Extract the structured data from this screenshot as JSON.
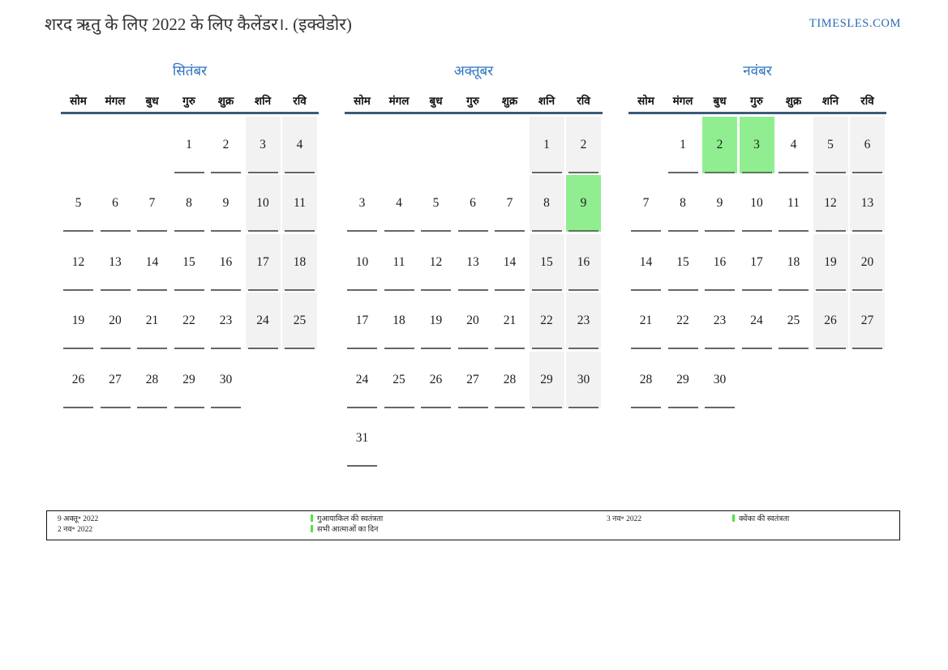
{
  "header": {
    "title": "शरद ऋतु के लिए 2022 के लिए कैलेंडर।. (इक्वेडोर)",
    "brand": "TIMESLES.COM"
  },
  "calendar": {
    "weekdays": [
      "सोम",
      "मंगल",
      "बुध",
      "गुरु",
      "शुक्र",
      "शनि",
      "रवि"
    ],
    "months": [
      {
        "name": "सितंबर",
        "holidays": [],
        "weeks": [
          [
            "",
            "",
            "",
            "1",
            "2",
            "3",
            "4"
          ],
          [
            "5",
            "6",
            "7",
            "8",
            "9",
            "10",
            "11"
          ],
          [
            "12",
            "13",
            "14",
            "15",
            "16",
            "17",
            "18"
          ],
          [
            "19",
            "20",
            "21",
            "22",
            "23",
            "24",
            "25"
          ],
          [
            "26",
            "27",
            "28",
            "29",
            "30",
            "",
            ""
          ]
        ]
      },
      {
        "name": "अक्तूबर",
        "holidays": [
          "9"
        ],
        "weeks": [
          [
            "",
            "",
            "",
            "",
            "",
            "1",
            "2"
          ],
          [
            "3",
            "4",
            "5",
            "6",
            "7",
            "8",
            "9"
          ],
          [
            "10",
            "11",
            "12",
            "13",
            "14",
            "15",
            "16"
          ],
          [
            "17",
            "18",
            "19",
            "20",
            "21",
            "22",
            "23"
          ],
          [
            "24",
            "25",
            "26",
            "27",
            "28",
            "29",
            "30"
          ],
          [
            "31",
            "",
            "",
            "",
            "",
            "",
            ""
          ]
        ]
      },
      {
        "name": "नवंबर",
        "holidays": [
          "2",
          "3"
        ],
        "weeks": [
          [
            "",
            "1",
            "2",
            "3",
            "4",
            "5",
            "6"
          ],
          [
            "7",
            "8",
            "9",
            "10",
            "11",
            "12",
            "13"
          ],
          [
            "14",
            "15",
            "16",
            "17",
            "18",
            "19",
            "20"
          ],
          [
            "21",
            "22",
            "23",
            "24",
            "25",
            "26",
            "27"
          ],
          [
            "28",
            "29",
            "30",
            "",
            "",
            "",
            ""
          ]
        ]
      }
    ]
  },
  "legend": {
    "columns": [
      [
        {
          "date": "9 अक्तू॰ 2022",
          "name": "गुआयाकिल की स्वतंत्रता"
        },
        {
          "date": "2 नव॰ 2022",
          "name": "सभी आत्माओं का दिन"
        }
      ],
      [
        {
          "date": "3 नव॰ 2022",
          "name": "क्वेंका की स्वतंत्रता"
        }
      ]
    ]
  },
  "colors": {
    "accent_blue": "#2e74c2",
    "header_line": "#3b5a7a",
    "weekend_bg": "#f2f2f2",
    "holiday_bg": "#90ee90",
    "legend_marker": "#55e148",
    "underline": "#666666"
  }
}
